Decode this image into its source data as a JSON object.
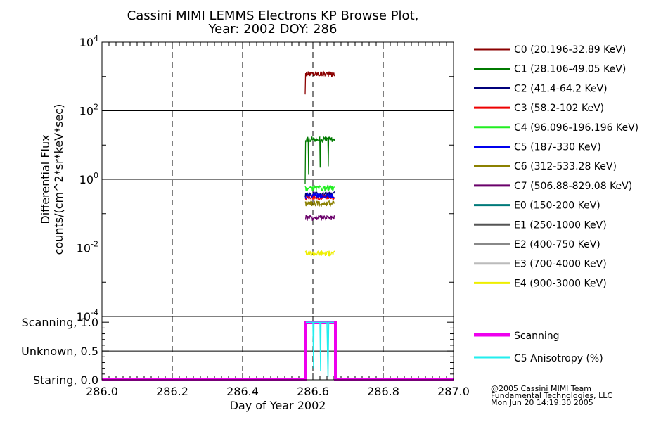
{
  "chart_data": [
    {
      "type": "line",
      "title": "Cassini MIMI LEMMS Electrons KP Browse Plot,",
      "subtitle": "Year: 2002 DOY: 286",
      "xlabel": "Day of Year 2002",
      "ylabel": "Differential Flux",
      "ylabel2": "counts/(cm^2*sr*keV*sec)",
      "y_scale": "log",
      "xlim": [
        286.0,
        287.0
      ],
      "ylim": [
        0.0001,
        10000
      ],
      "ytick_exponents": [
        "4",
        "2",
        "0",
        "-2",
        "-4"
      ],
      "grid": true,
      "legend_position": "right",
      "series": [
        {
          "name": "C0 (20.196-32.89 KeV)",
          "color": "#8b0000",
          "x_range": [
            286.578,
            286.662
          ],
          "level": 1200
        },
        {
          "name": "C1 (28.106-49.05 KeV)",
          "color": "#007a00",
          "x_range": [
            286.578,
            286.662
          ],
          "level": 15
        },
        {
          "name": "C2 (41.4-64.2 KeV)",
          "color": "#00007a",
          "x_range": [
            286.578,
            286.662
          ],
          "level": 0.37
        },
        {
          "name": "C3 (58.2-102 KeV)",
          "color": "#ee0000",
          "x_range": [
            286.578,
            286.662
          ],
          "level": 0.3
        },
        {
          "name": "C4 (96.096-196.196 KeV)",
          "color": "#22ee22",
          "x_range": [
            286.578,
            286.662
          ],
          "level": 0.55
        },
        {
          "name": "C5 (187-330 KeV)",
          "color": "#0000ee",
          "x_range": [
            286.578,
            286.662
          ],
          "level": 0.33
        },
        {
          "name": "C6 (312-533.28 KeV)",
          "color": "#8b8000",
          "x_range": [
            286.578,
            286.662
          ],
          "level": 0.2
        },
        {
          "name": "C7 (506.88-829.08 KeV)",
          "color": "#6a006a",
          "x_range": [
            286.578,
            286.662
          ],
          "level": 0.075
        },
        {
          "name": "E0 (150-200 KeV)",
          "color": "#007a7a",
          "x_range": null,
          "level": null
        },
        {
          "name": "E1 (250-1000 KeV)",
          "color": "#555555",
          "x_range": null,
          "level": null
        },
        {
          "name": "E2 (400-750 KeV)",
          "color": "#888888",
          "x_range": null,
          "level": null
        },
        {
          "name": "E3 (700-4000 KeV)",
          "color": "#bbbbbb",
          "x_range": null,
          "level": null
        },
        {
          "name": "E4 (900-3000 KeV)",
          "color": "#eeee00",
          "x_range": [
            286.578,
            286.662
          ],
          "level": 0.007
        }
      ]
    },
    {
      "type": "line",
      "xlabel": "Day of Year 2002",
      "xlim": [
        286.0,
        287.0
      ],
      "ylim": [
        0.0,
        1.1
      ],
      "xticks": [
        "286.0",
        "286.2",
        "286.4",
        "286.6",
        "286.8",
        "287.0"
      ],
      "yticks": [
        {
          "label": "Scanning, 1.0",
          "value": 1.0
        },
        {
          "label": "Unknown, 0.5",
          "value": 0.5
        },
        {
          "label": "Staring, 0.0",
          "value": 0.0
        }
      ],
      "grid": true,
      "legend_position": "right",
      "series": [
        {
          "name": "Scanning",
          "color": "#ee00ee",
          "x": [
            286.0,
            286.578,
            286.578,
            286.664,
            286.664,
            287.0
          ],
          "y": [
            0.0,
            0.0,
            1.0,
            1.0,
            0.0,
            0.0
          ]
        },
        {
          "name": "C5 Anisotropy (%)",
          "color": "#22eeee",
          "x": [
            286.58,
            286.6,
            286.602,
            286.603,
            286.62,
            286.622,
            286.623,
            286.64,
            286.643,
            286.645,
            286.66
          ],
          "y": [
            1.0,
            1.0,
            0.2,
            1.0,
            1.0,
            0.15,
            1.0,
            1.0,
            0.05,
            1.0,
            1.0
          ]
        }
      ]
    }
  ],
  "credits": [
    "@2005 Cassini MIMI Team",
    "Fundamental Technologies, LLC",
    "Mon Jun 20 14:19:30 2005"
  ]
}
